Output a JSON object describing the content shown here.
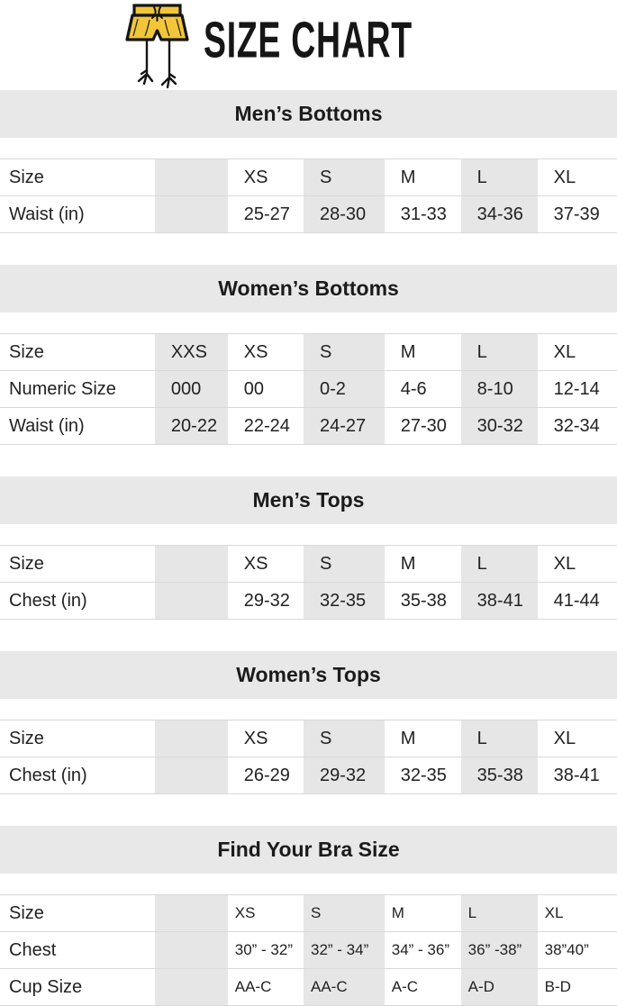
{
  "header": {
    "title": "SIZE CHART",
    "logo_icon": "shorts-with-bird-legs-icon"
  },
  "colors": {
    "background": "#ffffff",
    "section_bar_bg": "#e8e8e8",
    "shaded_column_bg": "#e6e6e6",
    "row_border": "#d9d9d9",
    "text": "#1d1d1d",
    "logo_yellow": "#f2c63b",
    "logo_outline": "#141414"
  },
  "sections": [
    {
      "title": "Men’s Bottoms",
      "style": "default",
      "rows": [
        {
          "label": "Size",
          "values": [
            "",
            "XS",
            "S",
            "M",
            "L",
            "XL"
          ]
        },
        {
          "label": "Waist (in)",
          "values": [
            "",
            "25-27",
            "28-30",
            "31-33",
            "34-36",
            "37-39"
          ]
        }
      ]
    },
    {
      "title": "Women’s Bottoms",
      "style": "default",
      "rows": [
        {
          "label": "Size",
          "values": [
            "XXS",
            "XS",
            "S",
            "M",
            "L",
            "XL"
          ]
        },
        {
          "label": "Numeric Size",
          "values": [
            "000",
            "00",
            "0-2",
            "4-6",
            "8-10",
            "12-14"
          ]
        },
        {
          "label": "Waist (in)",
          "values": [
            "20-22",
            "22-24",
            "24-27",
            "27-30",
            "30-32",
            "32-34"
          ]
        }
      ]
    },
    {
      "title": "Men’s Tops",
      "style": "default",
      "rows": [
        {
          "label": "Size",
          "values": [
            "",
            "XS",
            "S",
            "M",
            "L",
            "XL"
          ]
        },
        {
          "label": "Chest (in)",
          "values": [
            "",
            "29-32",
            "32-35",
            "35-38",
            "38-41",
            "41-44"
          ]
        }
      ]
    },
    {
      "title": "Women’s Tops",
      "style": "default",
      "rows": [
        {
          "label": "Size",
          "values": [
            "",
            "XS",
            "S",
            "M",
            "L",
            "XL"
          ]
        },
        {
          "label": "Chest (in)",
          "values": [
            "",
            "26-29",
            "29-32",
            "32-35",
            "35-38",
            "38-41"
          ]
        }
      ]
    },
    {
      "title": "Find Your Bra Size",
      "style": "compact",
      "rows": [
        {
          "label": "Size",
          "values": [
            "",
            "XS",
            "S",
            "M",
            "L",
            "XL"
          ]
        },
        {
          "label": "Chest",
          "values": [
            "",
            "30” - 32”",
            "32” - 34”",
            "34” - 36”",
            "36” -38”",
            "38”40”"
          ]
        },
        {
          "label": "Cup Size",
          "values": [
            "",
            "AA-C",
            "AA-C",
            "A-C",
            "A-D",
            "B-D"
          ]
        }
      ]
    }
  ]
}
